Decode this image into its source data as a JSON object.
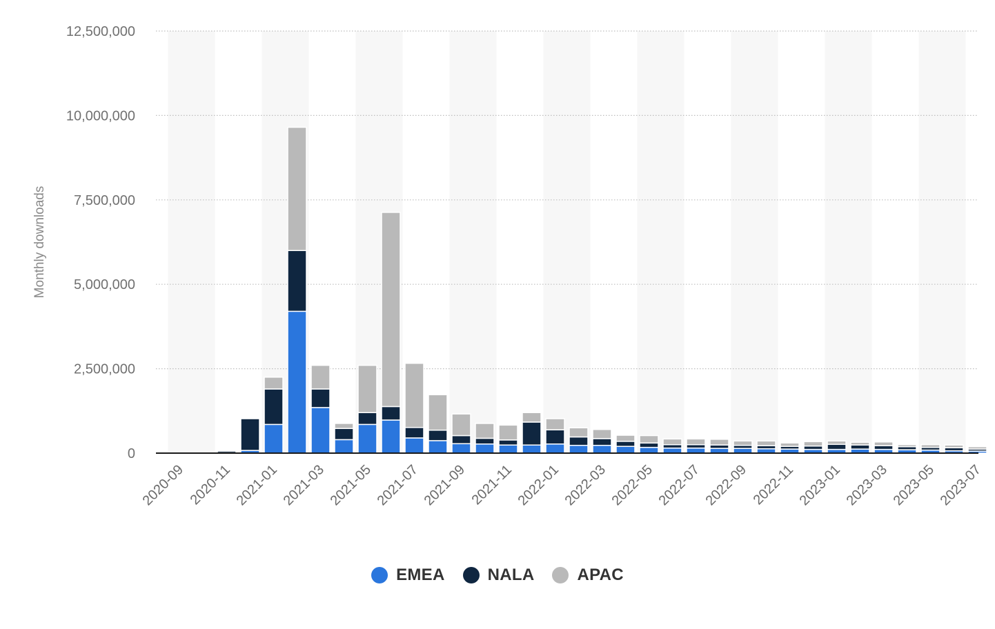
{
  "chart_data": {
    "type": "bar",
    "stacked": true,
    "ylabel": "Monthly downloads",
    "xlabel": "",
    "ylim": [
      0,
      12500000
    ],
    "yticks": [
      0,
      2500000,
      5000000,
      7500000,
      10000000,
      12500000
    ],
    "ytick_labels": [
      "0",
      "2,500,000",
      "5,000,000",
      "7,500,000",
      "10,000,000",
      "12,500,000"
    ],
    "grid": true,
    "legend_position": "bottom",
    "categories": [
      "2020-09",
      "2020-10",
      "2020-11",
      "2020-12",
      "2021-01",
      "2021-02",
      "2021-03",
      "2021-04",
      "2021-05",
      "2021-06",
      "2021-07",
      "2021-08",
      "2021-09",
      "2021-10",
      "2021-11",
      "2021-12",
      "2022-01",
      "2022-02",
      "2022-03",
      "2022-04",
      "2022-05",
      "2022-06",
      "2022-07",
      "2022-08",
      "2022-09",
      "2022-10",
      "2022-11",
      "2022-12",
      "2023-01",
      "2023-02",
      "2023-03",
      "2023-04",
      "2023-05",
      "2023-06",
      "2023-07"
    ],
    "xtick_labels": [
      "2020-09",
      "2020-11",
      "2021-01",
      "2021-03",
      "2021-05",
      "2021-07",
      "2021-09",
      "2021-11",
      "2022-01",
      "2022-03",
      "2022-05",
      "2022-07",
      "2022-09",
      "2022-11",
      "2023-01",
      "2023-03",
      "2023-05",
      "2023-07"
    ],
    "series": [
      {
        "name": "EMEA",
        "color": "#2a76dd",
        "values": [
          0,
          0,
          10000,
          80000,
          850000,
          4200000,
          1350000,
          400000,
          850000,
          980000,
          450000,
          370000,
          280000,
          270000,
          240000,
          240000,
          270000,
          230000,
          230000,
          200000,
          170000,
          150000,
          150000,
          140000,
          140000,
          130000,
          120000,
          110000,
          110000,
          120000,
          110000,
          100000,
          90000,
          70000,
          60000
        ]
      },
      {
        "name": "NALA",
        "color": "#0f2640",
        "values": [
          0,
          0,
          50000,
          940000,
          1050000,
          1800000,
          550000,
          330000,
          350000,
          400000,
          310000,
          310000,
          240000,
          170000,
          150000,
          680000,
          420000,
          250000,
          200000,
          150000,
          130000,
          100000,
          100000,
          100000,
          90000,
          90000,
          80000,
          100000,
          150000,
          120000,
          110000,
          90000,
          80000,
          90000,
          60000
        ]
      },
      {
        "name": "APAC",
        "color": "#b9b9b9",
        "values": [
          0,
          0,
          0,
          0,
          350000,
          3650000,
          700000,
          150000,
          1400000,
          5750000,
          1900000,
          1050000,
          640000,
          440000,
          440000,
          280000,
          330000,
          270000,
          270000,
          180000,
          220000,
          170000,
          170000,
          170000,
          130000,
          140000,
          100000,
          130000,
          100000,
          80000,
          110000,
          60000,
          80000,
          80000,
          70000
        ]
      }
    ]
  }
}
